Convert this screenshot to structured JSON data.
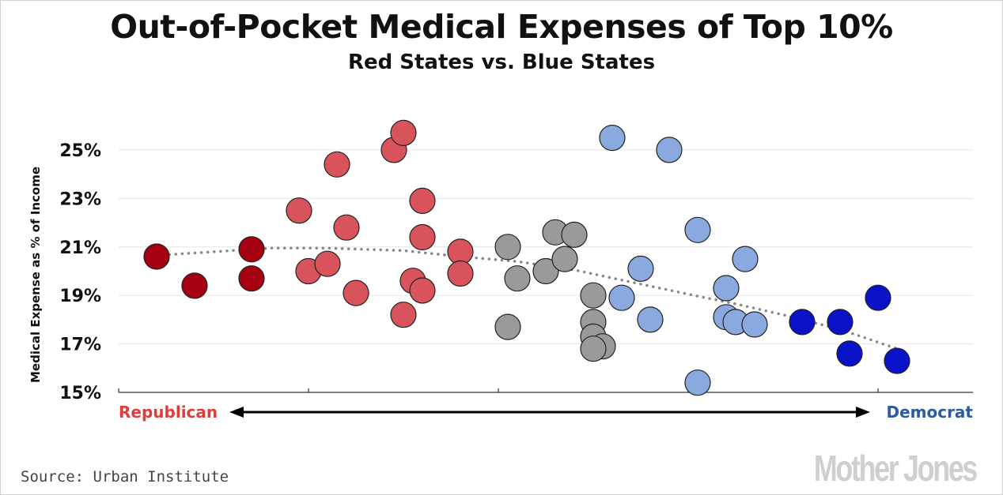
{
  "header": {
    "title": "Out-of-Pocket Medical Expenses of Top 10%",
    "subtitle": "Red States vs. Blue States"
  },
  "footer": {
    "source": "Source: Urban Institute",
    "logo": "Mother Jones"
  },
  "colors": {
    "dark_red": "#a50010",
    "light_red": "#d9535d",
    "gray": "#9a9a9a",
    "light_blue": "#8aa9df",
    "dark_blue": "#0a12c9",
    "trend": "#888888",
    "republican_label": "#e03c3c",
    "democrat_label": "#2d5aa5"
  },
  "chart_data": {
    "type": "scatter",
    "title": "Out-of-Pocket Medical Expenses of Top 10%",
    "subtitle": "Red States vs. Blue States",
    "ylabel": "Medical Expense as % of Income",
    "xlabel_left": "Republican",
    "xlabel_right": "Democrat",
    "x_axis": "partisan lean, Republican to Democrat (no numeric labels)",
    "xlim": [
      0,
      9
    ],
    "ylim": [
      15,
      26.3
    ],
    "yticks": [
      "15%",
      "17%",
      "19%",
      "21%",
      "23%",
      "25%"
    ],
    "ytick_values": [
      15,
      17,
      19,
      21,
      23,
      25
    ],
    "grid": "horizontal",
    "series": [
      {
        "color": "dark_red",
        "points": [
          [
            0.4,
            20.6
          ],
          [
            0.8,
            19.4
          ],
          [
            1.4,
            20.9
          ],
          [
            1.4,
            19.7
          ]
        ]
      },
      {
        "color": "light_red",
        "points": [
          [
            1.9,
            22.5
          ],
          [
            2.0,
            20.0
          ],
          [
            2.2,
            20.3
          ],
          [
            2.3,
            24.4
          ],
          [
            2.4,
            21.8
          ],
          [
            2.5,
            19.1
          ],
          [
            2.9,
            25.0
          ],
          [
            3.0,
            25.7
          ],
          [
            3.0,
            18.2
          ],
          [
            3.1,
            19.6
          ],
          [
            3.2,
            22.9
          ],
          [
            3.2,
            21.4
          ],
          [
            3.2,
            19.2
          ],
          [
            3.6,
            20.8
          ],
          [
            3.6,
            19.9
          ]
        ]
      },
      {
        "color": "gray",
        "points": [
          [
            4.1,
            21.0
          ],
          [
            4.2,
            19.7
          ],
          [
            4.1,
            17.7
          ],
          [
            4.5,
            20.0
          ],
          [
            4.6,
            21.6
          ],
          [
            4.7,
            20.5
          ],
          [
            4.8,
            21.5
          ],
          [
            5.0,
            19.0
          ],
          [
            5.0,
            17.9
          ],
          [
            5.0,
            17.3
          ],
          [
            5.1,
            16.9
          ],
          [
            5.0,
            16.8
          ]
        ]
      },
      {
        "color": "light_blue",
        "points": [
          [
            5.2,
            25.5
          ],
          [
            5.3,
            18.9
          ],
          [
            5.5,
            20.1
          ],
          [
            5.6,
            18.0
          ],
          [
            5.8,
            25.0
          ],
          [
            6.1,
            21.7
          ],
          [
            6.1,
            15.4
          ],
          [
            6.4,
            19.3
          ],
          [
            6.4,
            18.1
          ],
          [
            6.5,
            17.9
          ],
          [
            6.6,
            20.5
          ],
          [
            6.7,
            17.8
          ]
        ]
      },
      {
        "color": "dark_blue",
        "points": [
          [
            7.2,
            17.9
          ],
          [
            7.6,
            17.9
          ],
          [
            7.7,
            16.6
          ],
          [
            8.0,
            18.9
          ],
          [
            8.2,
            16.3
          ]
        ]
      }
    ],
    "trendline": {
      "style": "dotted",
      "points": [
        [
          0.4,
          20.65
        ],
        [
          1.0,
          20.8
        ],
        [
          1.6,
          20.95
        ],
        [
          2.2,
          20.95
        ],
        [
          3.0,
          20.85
        ],
        [
          3.6,
          20.6
        ],
        [
          4.2,
          20.4
        ],
        [
          4.8,
          20.05
        ],
        [
          5.4,
          19.55
        ],
        [
          6.0,
          19.05
        ],
        [
          6.5,
          18.65
        ],
        [
          7.0,
          18.2
        ],
        [
          7.6,
          17.6
        ],
        [
          8.2,
          16.8
        ]
      ]
    }
  }
}
